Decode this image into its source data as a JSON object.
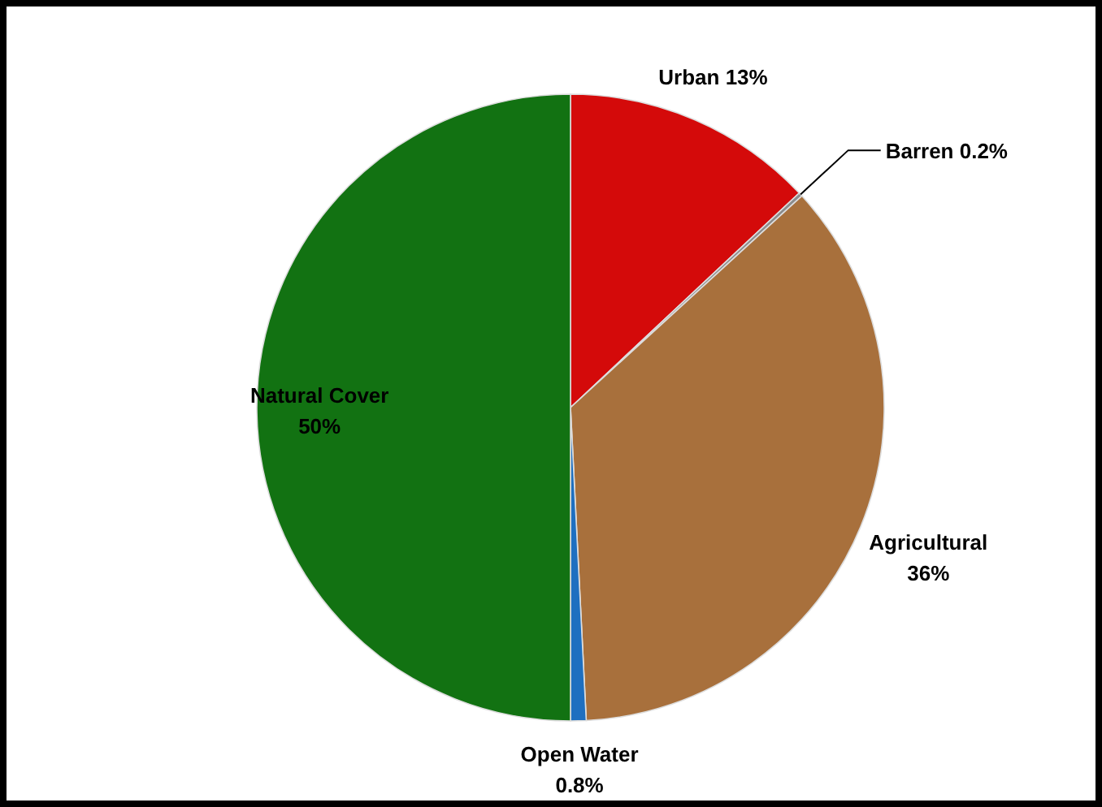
{
  "chart_data": {
    "type": "pie",
    "categories": [
      "Urban",
      "Barren",
      "Agricultural",
      "Open Water",
      "Natural Cover"
    ],
    "values": [
      13,
      0.2,
      36,
      0.8,
      50
    ],
    "colors": [
      "#d40a0a",
      "#8c8c8c",
      "#a8703c",
      "#1e6fc0",
      "#127212"
    ],
    "value_labels": [
      "13%",
      "0.2%",
      "36%",
      "0.8%",
      "50%"
    ]
  }
}
